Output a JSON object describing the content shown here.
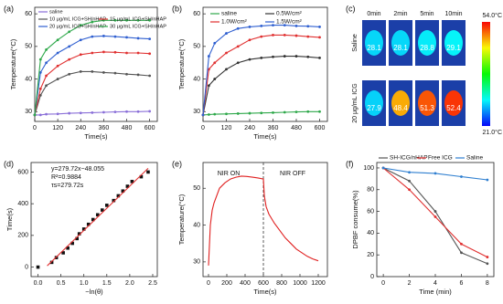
{
  "chart_data": [
    {
      "type": "line",
      "panel_label": "(a)",
      "xlabel": "Time(s)",
      "ylabel": "Temperature(°C)",
      "x": [
        0,
        30,
        60,
        120,
        180,
        240,
        300,
        360,
        420,
        480,
        540,
        600
      ],
      "xlim": [
        0,
        640
      ],
      "xticks": [
        0,
        120,
        240,
        360,
        480,
        600
      ],
      "ylim": [
        27,
        62
      ],
      "yticks": [
        30,
        40,
        50,
        60
      ],
      "series": [
        {
          "name": "saline",
          "color": "#8a6fd8",
          "values": [
            29,
            29,
            29.2,
            29.3,
            29.5,
            29.6,
            29.7,
            29.8,
            29.9,
            30,
            30,
            30.1
          ]
        },
        {
          "name": "10 μg/mL ICG+SH/nHAP",
          "color": "#555555",
          "values": [
            29,
            35,
            38,
            40,
            41.5,
            42.3,
            42.3,
            42,
            41.8,
            41.5,
            41.3,
            41
          ]
        },
        {
          "name": "15 μg/mL ICG+SH/nHAP",
          "color": "#e03030",
          "values": [
            29,
            37,
            41,
            44,
            46,
            47.5,
            48,
            48.3,
            48.2,
            48,
            48,
            47.8
          ]
        },
        {
          "name": "20 μg/mL ICG+SH/nHAP",
          "color": "#2f5fd0",
          "values": [
            29,
            42,
            45,
            48,
            50,
            52,
            53,
            53.2,
            53,
            52.8,
            52.5,
            52.3
          ]
        },
        {
          "name": "30 μg/mL ICG+SH/nHAP",
          "color": "#2ea84a",
          "values": [
            29,
            46,
            49,
            52,
            54.5,
            56.5,
            57.5,
            58,
            58,
            58,
            58,
            58
          ]
        }
      ]
    },
    {
      "type": "line",
      "panel_label": "(b)",
      "xlabel": "Time(s)",
      "ylabel": "Temperature(°C)",
      "x": [
        0,
        30,
        60,
        120,
        180,
        240,
        300,
        360,
        420,
        480,
        540,
        600
      ],
      "xlim": [
        0,
        640
      ],
      "xticks": [
        0,
        120,
        240,
        360,
        480,
        600
      ],
      "ylim": [
        27,
        62
      ],
      "yticks": [
        30,
        40,
        50,
        60
      ],
      "series": [
        {
          "name": "saline",
          "color": "#2ea84a",
          "values": [
            29,
            29.1,
            29.2,
            29.3,
            29.4,
            29.5,
            29.6,
            29.7,
            29.8,
            29.9,
            30,
            30
          ]
        },
        {
          "name": "0.5W/cm²",
          "color": "#333333",
          "values": [
            29,
            38,
            40,
            43,
            45,
            46,
            46.5,
            46.8,
            47,
            47,
            46.8,
            46.5
          ]
        },
        {
          "name": "1.0W/cm²",
          "color": "#e03030",
          "values": [
            29,
            43,
            45,
            48,
            50,
            52,
            53,
            53.5,
            53.5,
            53.3,
            53,
            52.8
          ]
        },
        {
          "name": "1.5W/cm²",
          "color": "#2f5fd0",
          "values": [
            29,
            47,
            51,
            54,
            55.5,
            56,
            56.3,
            56.5,
            56.5,
            56.3,
            56.2,
            56
          ]
        }
      ]
    },
    {
      "type": "thermal",
      "panel_label": "(c)",
      "columns": [
        "0min",
        "2min",
        "5min",
        "10min"
      ],
      "rows": [
        {
          "name": "Saline",
          "values": [
            28.1,
            28.1,
            28.8,
            29.1
          ]
        },
        {
          "name": "20 μg/mL ICG",
          "values": [
            27.9,
            48.4,
            51.3,
            52.4
          ]
        }
      ],
      "colorbar": [
        {
          "value": 54,
          "label": "54.0°C"
        },
        {
          "value": 21,
          "label": "21.0°C"
        }
      ]
    },
    {
      "type": "scatter",
      "panel_label": "(d)",
      "xlabel": "−ln(θ)",
      "ylabel": "Time(s)",
      "xlim": [
        -0.15,
        2.6
      ],
      "xticks": [
        {
          "value": 0,
          "label": "0.0"
        },
        0.5,
        {
          "value": 1,
          "label": "1.0"
        },
        1.5,
        {
          "value": 2,
          "label": "2.0"
        },
        2.5
      ],
      "ylim": [
        -60,
        660
      ],
      "yticks": [
        0,
        200,
        400,
        600
      ],
      "annotations": [
        "y=279.72x−48.055",
        "R²=0.9884",
        "τs=279.72s"
      ],
      "series": [
        {
          "color": "#111111",
          "mode": "points",
          "x": [
            0,
            0.3,
            0.4,
            0.55,
            0.65,
            0.75,
            0.85,
            0.9,
            1.0,
            1.1,
            1.2,
            1.3,
            1.4,
            1.5,
            1.65,
            1.75,
            1.85,
            1.95,
            2.05,
            2.25,
            2.4
          ],
          "values": [
            0,
            30,
            60,
            90,
            120,
            150,
            180,
            210,
            240,
            270,
            300,
            330,
            360,
            390,
            420,
            450,
            480,
            510,
            540,
            570,
            600
          ]
        },
        {
          "color": "#e03030",
          "mode": "line",
          "x": [
            0.2,
            2.4
          ],
          "values": [
            7.9,
            623.3
          ]
        }
      ]
    },
    {
      "type": "line",
      "panel_label": "(e)",
      "xlabel": "Time(s)",
      "ylabel": "Temperature(°C)",
      "x": [
        0,
        20,
        40,
        60,
        90,
        120,
        180,
        240,
        300,
        360,
        420,
        480,
        540,
        600,
        610,
        630,
        660,
        720,
        780,
        840,
        900,
        960,
        1020,
        1080,
        1140,
        1200
      ],
      "xlim": [
        -60,
        1300
      ],
      "xticks": [
        0,
        200,
        400,
        600,
        800,
        1000,
        1200
      ],
      "ylim": [
        26,
        57
      ],
      "yticks": [
        30,
        40,
        50
      ],
      "vline": 600,
      "annotations": [
        "NIR ON",
        "NIR OFF"
      ],
      "series": [
        {
          "color": "#e02020",
          "values": [
            29,
            40,
            44,
            46,
            48,
            50,
            51.5,
            52.5,
            53,
            53.3,
            53.2,
            53,
            52.8,
            52.5,
            48,
            45,
            43,
            40.5,
            38.5,
            36.5,
            35,
            33.5,
            32.5,
            31.5,
            30.8,
            30.3
          ]
        }
      ]
    },
    {
      "type": "line",
      "panel_label": "(f)",
      "xlabel": "Time (min)",
      "ylabel": "DPBF consume(%)",
      "x": [
        0,
        2,
        4,
        6,
        8
      ],
      "xlim": [
        -0.5,
        8.5
      ],
      "xticks": [
        0,
        2,
        4,
        6,
        8
      ],
      "ylim": [
        0,
        105
      ],
      "yticks": [
        0,
        20,
        40,
        60,
        80,
        100
      ],
      "series": [
        {
          "name": "SH-ICG/nHAP",
          "color": "#555555",
          "values": [
            100,
            88,
            60,
            22,
            12
          ]
        },
        {
          "name": "Free ICG",
          "color": "#e03030",
          "values": [
            100,
            80,
            55,
            30,
            18
          ]
        },
        {
          "name": "Saline",
          "color": "#2f7fd0",
          "values": [
            100,
            96,
            95,
            92,
            89
          ]
        }
      ]
    }
  ]
}
